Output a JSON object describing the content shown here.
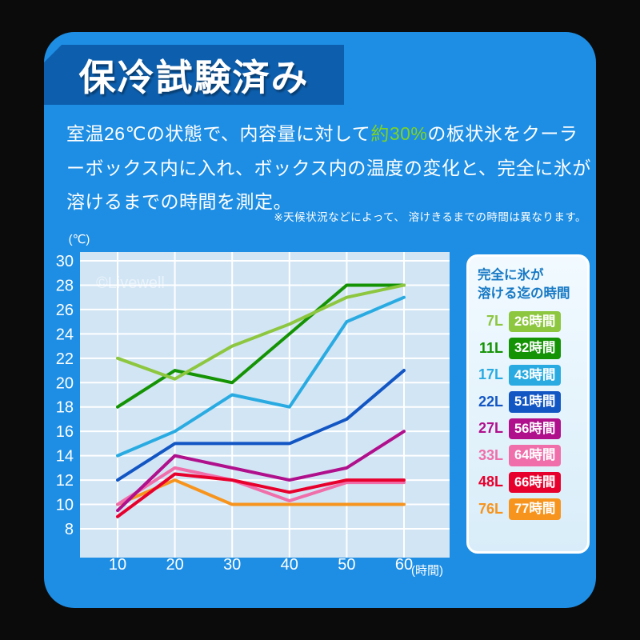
{
  "banner": {
    "title": "保冷試験済み"
  },
  "description": {
    "part1": "室温26℃の状態で、内容量に対して",
    "highlight": "約30%",
    "part2": "の板状氷をクーラーボックス内に入れ、ボックス内の温度の変化と、完全に氷が溶けるまでの時間を測定。"
  },
  "note": "※天候状況などによって、 溶けきるまでの時間は異なります。",
  "watermark": "©Livewell",
  "chart_data": {
    "type": "line",
    "x": [
      10,
      20,
      30,
      40,
      50,
      60
    ],
    "xlabel": "(時間)",
    "ylabel": "(℃)",
    "ylim": [
      8,
      30
    ],
    "yticks": [
      30,
      28,
      26,
      24,
      22,
      20,
      18,
      16,
      14,
      12,
      10,
      8
    ],
    "grid": true,
    "legend_position": "right",
    "series": [
      {
        "name": "76L",
        "color": "#f7941d",
        "values": [
          10,
          12,
          10,
          10,
          10,
          10
        ]
      },
      {
        "name": "33L",
        "color": "#f06eaa",
        "values": [
          10,
          13,
          12,
          10.3,
          11.8,
          11.8
        ]
      },
      {
        "name": "48L",
        "color": "#e8002d",
        "values": [
          9,
          12.5,
          12,
          11,
          12,
          12
        ]
      },
      {
        "name": "27L",
        "color": "#b0108c",
        "values": [
          9.5,
          14,
          13,
          12,
          13,
          16
        ]
      },
      {
        "name": "22L",
        "color": "#1256c4",
        "values": [
          12,
          15,
          15,
          15,
          17,
          21
        ]
      },
      {
        "name": "17L",
        "color": "#29abe2",
        "values": [
          14,
          16,
          19,
          18,
          25,
          27
        ]
      },
      {
        "name": "11L",
        "color": "#149304",
        "values": [
          18,
          21,
          20,
          24,
          28,
          28
        ]
      },
      {
        "name": "7L",
        "color": "#8dc63f",
        "values": [
          22,
          20.3,
          23,
          24.8,
          27,
          28
        ]
      }
    ]
  },
  "legend": {
    "title_line1": "完全に氷が",
    "title_line2": "溶ける迄の時間",
    "items": [
      {
        "label": "7L",
        "time": "26時間",
        "color": "#8dc63f"
      },
      {
        "label": "11L",
        "time": "32時間",
        "color": "#149304"
      },
      {
        "label": "17L",
        "time": "43時間",
        "color": "#29abe2"
      },
      {
        "label": "22L",
        "time": "51時間",
        "color": "#1256c4"
      },
      {
        "label": "27L",
        "time": "56時間",
        "color": "#b0108c"
      },
      {
        "label": "33L",
        "time": "64時間",
        "color": "#f06eaa"
      },
      {
        "label": "48L",
        "time": "66時間",
        "color": "#e8002d"
      },
      {
        "label": "76L",
        "time": "77時間",
        "color": "#f7941d"
      }
    ]
  },
  "colors": {
    "background": "#0b0b0b",
    "card_blue": "#1e8ee4",
    "banner_blue": "#0d5fae",
    "highlight_green": "#7ed321",
    "plot_bg": "#d2e5f4",
    "grid_white": "#ffffff",
    "legend_title_blue": "#1779c4",
    "text_white": "#ffffff"
  }
}
